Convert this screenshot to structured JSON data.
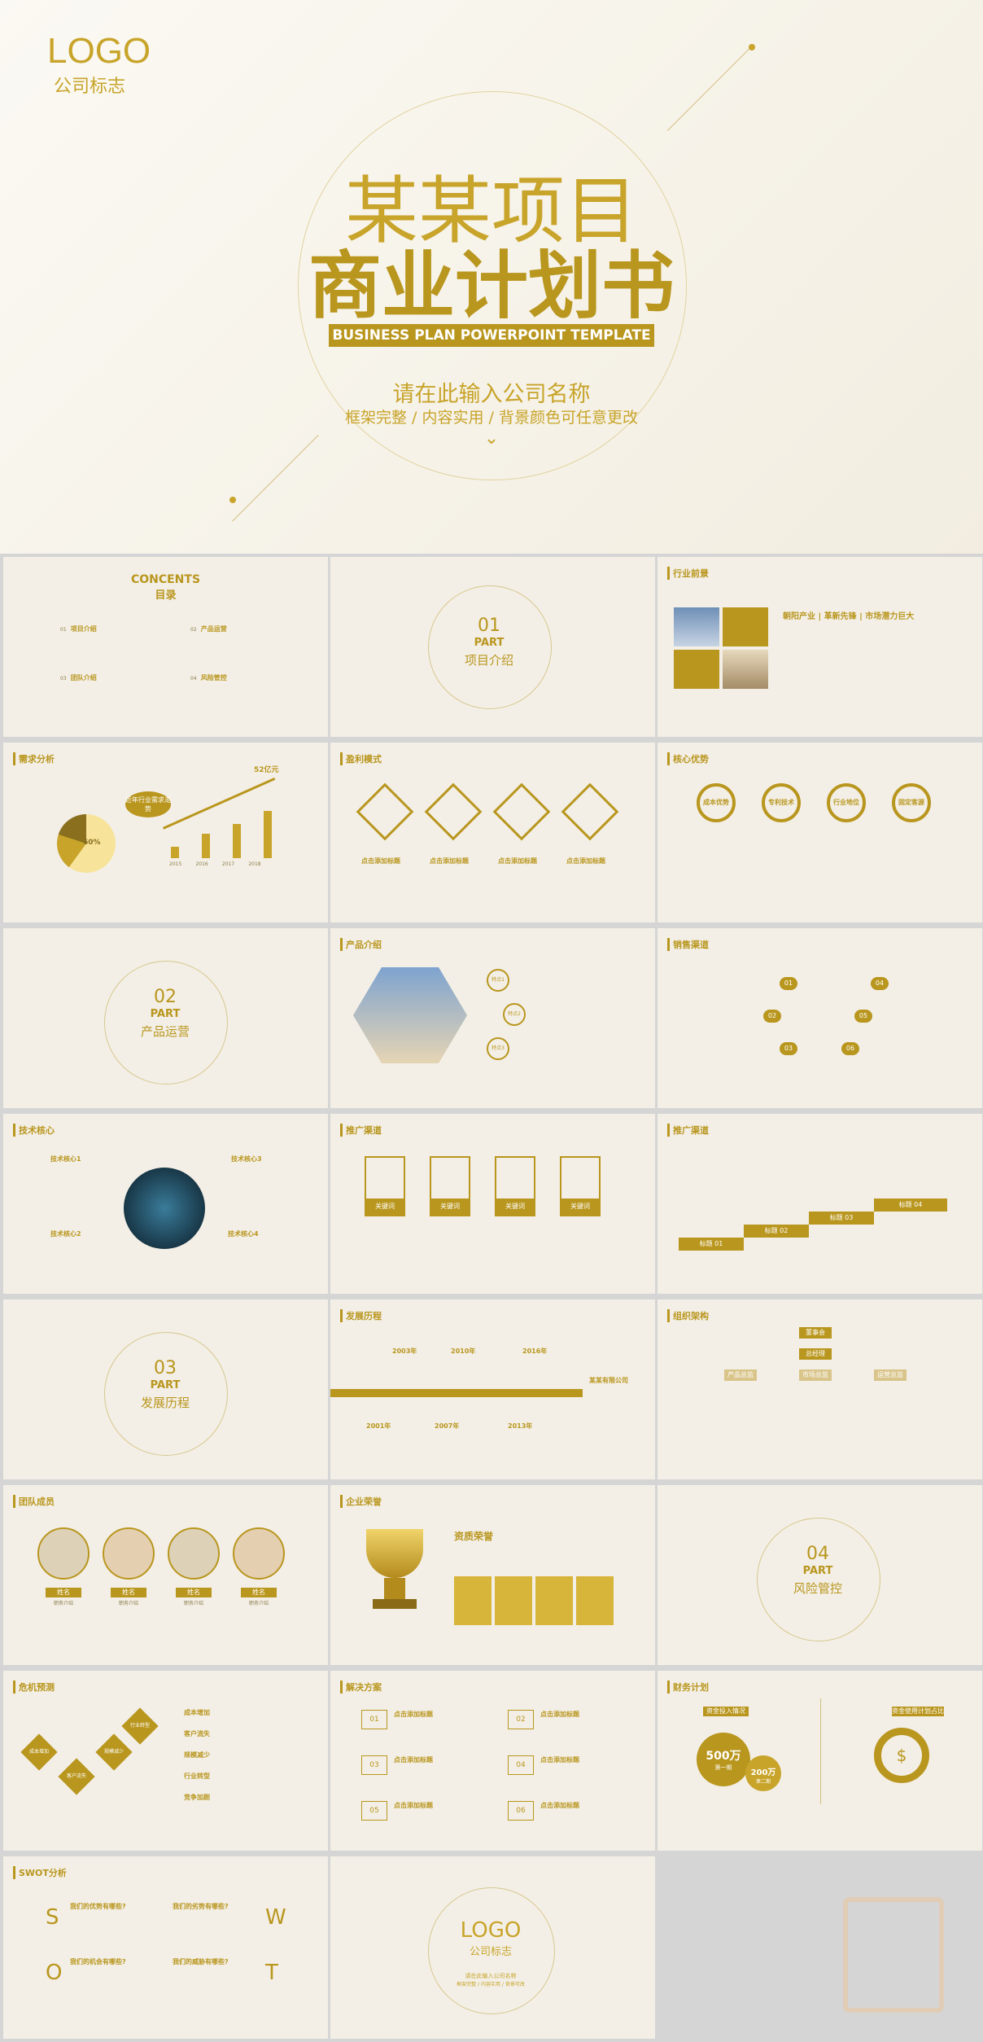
{
  "hero": {
    "logo": "LOGO",
    "logo_sub": "公司标志",
    "title_1": "某某项目",
    "title_2": "商业计划书",
    "subtitle_en": "BUSINESS PLAN POWERPOINT TEMPLATE",
    "company": "请在此输入公司名称",
    "tagline": "框架完整 / 内容实用 / 背景颜色可任意更改"
  },
  "contents": {
    "title_en": "CONCENTS",
    "title_cn": "目录",
    "items": [
      {
        "num": "01",
        "label": "项目介绍"
      },
      {
        "num": "02",
        "label": "产品运营"
      },
      {
        "num": "03",
        "label": "团队介绍"
      },
      {
        "num": "04",
        "label": "风险管控"
      }
    ]
  },
  "part1": {
    "num": "01",
    "part": "PART",
    "label": "项目介绍"
  },
  "industry": {
    "header": "行业前景",
    "tags": [
      "朝阳产业",
      "革新先锋",
      "市场潜力巨大"
    ]
  },
  "demand": {
    "header": "需求分析",
    "badge": "近年行业需求走势",
    "pie_label": "60%",
    "peak": "52亿元",
    "years": [
      "2015",
      "2016",
      "2017",
      "2018"
    ]
  },
  "profit": {
    "header": "盈利模式",
    "items": [
      "点击添加标题",
      "点击添加标题",
      "点击添加标题",
      "点击添加标题"
    ]
  },
  "advantage": {
    "header": "核心优势",
    "items": [
      "成本优势",
      "专利技术",
      "行业地位",
      "固定客源"
    ]
  },
  "part2": {
    "num": "02",
    "part": "PART",
    "label": "产品运营"
  },
  "product": {
    "header": "产品介绍",
    "points": [
      "特点1",
      "特点2",
      "特点3"
    ]
  },
  "sales": {
    "header": "销售渠道",
    "nums": [
      "01",
      "02",
      "03",
      "04",
      "05",
      "06"
    ]
  },
  "tech": {
    "header": "技术核心",
    "items": [
      "技术核心1",
      "技术核心2",
      "技术核心3",
      "技术核心4"
    ]
  },
  "promo1": {
    "header": "推广渠道",
    "items": [
      "关键词",
      "关键词",
      "关键词",
      "关键词"
    ]
  },
  "promo2": {
    "header": "推广渠道",
    "steps": [
      "标题 01",
      "标题 02",
      "标题 03",
      "标题 04"
    ]
  },
  "part3": {
    "num": "03",
    "part": "PART",
    "label": "发展历程"
  },
  "history": {
    "header": "发展历程",
    "years": [
      "2001年",
      "2003年",
      "2007年",
      "2010年",
      "2013年",
      "2016年"
    ],
    "end": "某某有限公司"
  },
  "org": {
    "header": "组织架构",
    "top": "董事会",
    "second": "总经理",
    "depts": [
      "产品总监",
      "市场总监",
      "运营总监"
    ]
  },
  "team": {
    "header": "团队成员",
    "names": [
      "姓名",
      "姓名",
      "姓名",
      "姓名"
    ],
    "roles": [
      "职务介绍",
      "职务介绍",
      "职务介绍",
      "职务介绍"
    ]
  },
  "honor": {
    "header": "企业荣誉",
    "title": "资质荣誉"
  },
  "part4": {
    "num": "04",
    "part": "PART",
    "label": "风险管控"
  },
  "risk": {
    "header": "危机预测",
    "items": [
      "成本增加",
      "客户流失",
      "规模减少",
      "行业转型",
      "竞争加剧"
    ],
    "tiles": [
      "成本增加",
      "客户流失",
      "规模减少",
      "行业转型"
    ]
  },
  "solution": {
    "header": "解决方案",
    "nums": [
      "01",
      "02",
      "03",
      "04",
      "05",
      "06"
    ],
    "label": "点击添加标题"
  },
  "finance": {
    "header": "财务计划",
    "big": "500万",
    "big_sub": "第一期",
    "small": "200万",
    "small_sub": "第二期",
    "left_tag": "资金投入情况",
    "right_tag": "资金使用计划占比"
  },
  "swot": {
    "header": "SWOT分析",
    "letters": [
      "S",
      "W",
      "O",
      "T"
    ],
    "q": [
      "我们的优势有哪些?",
      "我们的劣势有哪些?",
      "我们的机会有哪些?",
      "我们的威胁有哪些?"
    ]
  },
  "end": {
    "logo": "LOGO",
    "logo_sub": "公司标志",
    "company": "请在此输入公司名称",
    "tagline": "框架完整 / 内容实用 / 背景可改"
  }
}
